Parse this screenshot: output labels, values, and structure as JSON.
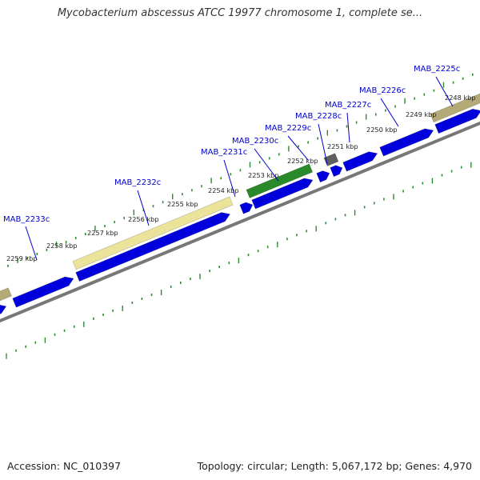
{
  "title": "Mycobacterium abscessus ATCC 19977 chromosome 1, complete se...",
  "footer": {
    "accession": "Accession: NC_010397",
    "summary": "Topology: circular; Length: 5,067,172 bp; Genes: 4,970"
  },
  "colors": {
    "cds_forward": "#0000dd",
    "backbone": "#777777",
    "tick": "#2e8b2e",
    "gene_label": "#0000cc",
    "gene_yellow": "#ece39a",
    "gene_green": "#2a8a2a",
    "gene_olive": "#b3aa78",
    "gene_gray": "#606060"
  },
  "kbp_labels": [
    "2259 kbp",
    "2258 kbp",
    "2257 kbp",
    "2256 kbp",
    "2255 kbp",
    "2254 kbp",
    "2253 kbp",
    "2252 kbp",
    "2251 kbp",
    "2250 kbp",
    "2249 kbp",
    "2248 kbp"
  ],
  "gene_labels": [
    "MAB_2233c",
    "MAB_2232c",
    "MAB_2231c",
    "MAB_2230c",
    "MAB_2229c",
    "MAB_2228c",
    "MAB_2227c",
    "MAB_2226c",
    "MAB_2225c"
  ]
}
